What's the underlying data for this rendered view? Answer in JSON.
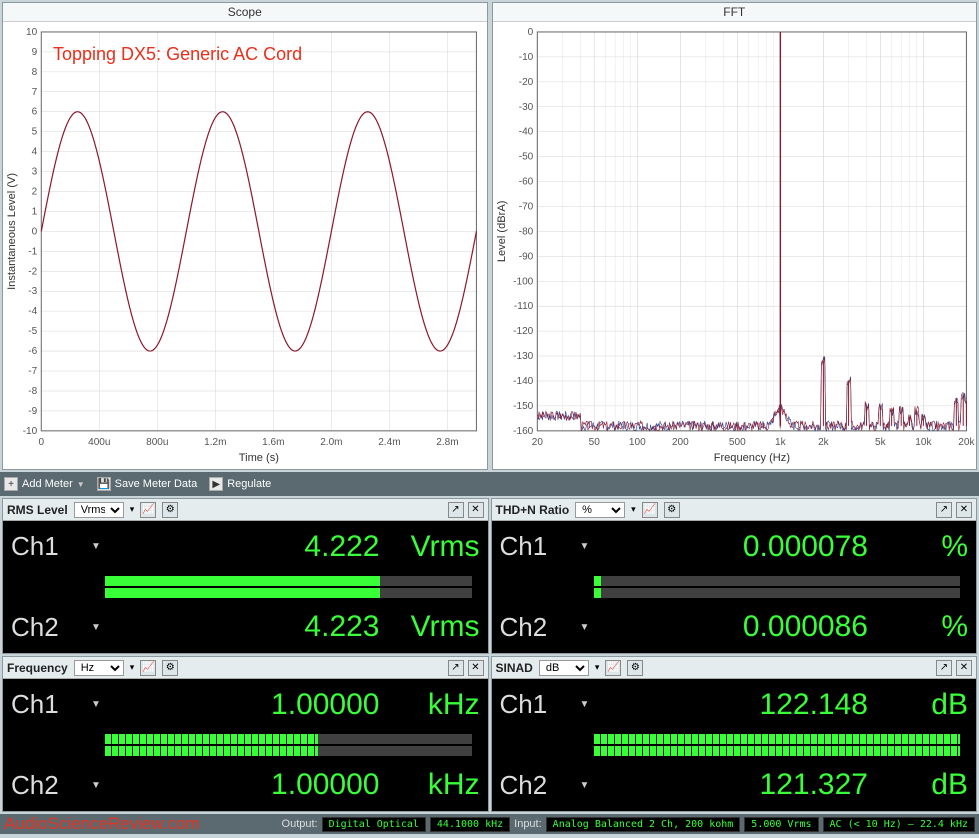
{
  "overlay_annotation": "Topping DX5: Generic AC Cord",
  "watermark": "AudioScienceReview.com",
  "scope_chart": {
    "type": "line",
    "title": "Scope",
    "xlabel": "Time (s)",
    "ylabel": "Instantaneous Level (V)",
    "xlim": [
      0,
      0.003
    ],
    "ylim": [
      -10,
      10
    ],
    "xticks": [
      0,
      0.0004,
      0.0008,
      0.0012,
      0.0016,
      0.002,
      0.0024,
      0.0028
    ],
    "xtick_labels": [
      "0",
      "400u",
      "800u",
      "1.2m",
      "1.6m",
      "2.0m",
      "2.4m",
      "2.8m"
    ],
    "yticks": [
      -10,
      -9,
      -8,
      -7,
      -6,
      -5,
      -4,
      -3,
      -2,
      -1,
      0,
      1,
      2,
      3,
      4,
      5,
      6,
      7,
      8,
      9,
      10
    ],
    "grid_color": "#d6d6d6",
    "background_color": "#ffffff",
    "axis_color": "#666666",
    "line_color": "#8b1a2e",
    "line_width": 1.2,
    "sine": {
      "amplitude": 6.0,
      "frequency_hz": 1000,
      "phase": 0
    },
    "label_fontsize": 10,
    "title_fontsize": 12
  },
  "fft_chart": {
    "type": "spectrum",
    "title": "FFT",
    "xlabel": "Frequency (Hz)",
    "ylabel": "Level (dBrA)",
    "xscale": "log",
    "xlim": [
      20,
      20000
    ],
    "ylim": [
      -160,
      0
    ],
    "xticks": [
      20,
      50,
      100,
      200,
      500,
      1000,
      2000,
      5000,
      10000,
      20000
    ],
    "xtick_labels": [
      "20",
      "50",
      "100",
      "200",
      "500",
      "1k",
      "2k",
      "5k",
      "10k",
      "20k"
    ],
    "yticks": [
      0,
      -10,
      -20,
      -30,
      -40,
      -50,
      -60,
      -70,
      -80,
      -90,
      -100,
      -110,
      -120,
      -130,
      -140,
      -150,
      -160
    ],
    "grid_color": "#d6d6d6",
    "background_color": "#ffffff",
    "axis_color": "#666666",
    "series_colors": [
      "#8b1a2e",
      "#2a3f8f"
    ],
    "noise_floor_db": -158,
    "fundamental_hz": 1000,
    "fundamental_db": 0,
    "harmonics": [
      {
        "hz": 2000,
        "db": -132
      },
      {
        "hz": 3000,
        "db": -140
      },
      {
        "hz": 4000,
        "db": -150
      },
      {
        "hz": 5000,
        "db": -150
      },
      {
        "hz": 6000,
        "db": -152
      },
      {
        "hz": 7000,
        "db": -152
      },
      {
        "hz": 8000,
        "db": -155
      },
      {
        "hz": 9000,
        "db": -152
      },
      {
        "hz": 10000,
        "db": -155
      },
      {
        "hz": 17000,
        "db": -148
      },
      {
        "hz": 19000,
        "db": -146
      },
      {
        "hz": 20000,
        "db": -148
      }
    ],
    "label_fontsize": 10,
    "title_fontsize": 12
  },
  "toolbar": {
    "add_meter": "Add Meter",
    "save_meter": "Save Meter Data",
    "regulate": "Regulate"
  },
  "meters": {
    "rms": {
      "title": "RMS Level",
      "unit_selector": "Vrms",
      "ch1_label": "Ch1",
      "ch2_label": "Ch2",
      "ch1_value": "4.222",
      "ch2_value": "4.223",
      "unit": "Vrms",
      "bar1_pct": 75,
      "bar2_pct": 75,
      "value_color": "#38ff38"
    },
    "thdn": {
      "title": "THD+N Ratio",
      "unit_selector": "%",
      "ch1_label": "Ch1",
      "ch2_label": "Ch2",
      "ch1_value": "0.000078",
      "ch2_value": "0.000086",
      "unit": "%",
      "bar1_pct": 2,
      "bar2_pct": 2,
      "value_color": "#38ff38"
    },
    "freq": {
      "title": "Frequency",
      "unit_selector": "Hz",
      "ch1_label": "Ch1",
      "ch2_label": "Ch2",
      "ch1_value": "1.00000",
      "ch2_value": "1.00000",
      "unit": "kHz",
      "bar1_pct": 58,
      "bar2_pct": 58,
      "value_color": "#38ff38"
    },
    "sinad": {
      "title": "SINAD",
      "unit_selector": "dB",
      "ch1_label": "Ch1",
      "ch2_label": "Ch2",
      "ch1_value": "122.148",
      "ch2_value": "121.327",
      "unit": "dB",
      "bar1_pct": 100,
      "bar2_pct": 100,
      "value_color": "#38ff38"
    }
  },
  "statusbar": {
    "output_label": "Output:",
    "output_conn": "Digital Optical",
    "sample_rate": "44.1000 kHz",
    "input_label": "Input:",
    "input_conn": "Analog Balanced 2 Ch, 200 kohm",
    "input_level": "5.000 Vrms",
    "bandwidth": "AC (< 10 Hz) – 22.4 kHz"
  },
  "colors": {
    "panel_bg": "#c8d4d8",
    "meter_bg": "#000000",
    "reading_green": "#38ff38",
    "annotation_red": "#e8301c",
    "header_bg": "#e4ecee",
    "toolbar_bg": "#5a6a70"
  }
}
